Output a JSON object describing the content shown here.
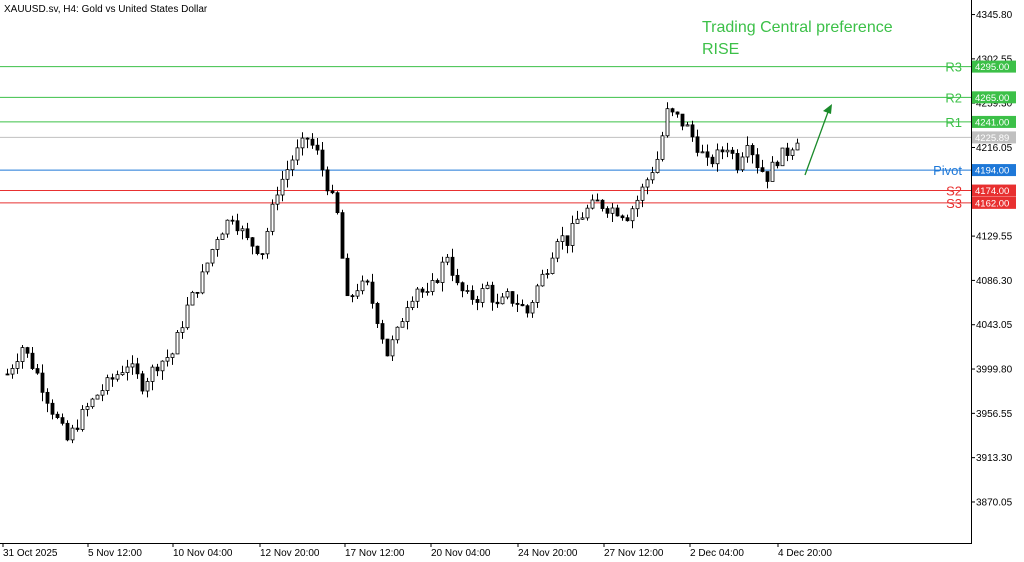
{
  "header": {
    "symbol_label": "XAUUSD.sv, H4:  Gold vs United States Dollar"
  },
  "annotation": {
    "line1": "Trading Central preference",
    "line2": "RISE"
  },
  "colors": {
    "resistance": "#3cc048",
    "support": "#e83030",
    "pivot": "#1e78d8",
    "current": "#c0c0c0",
    "candle_bull": "#ffffff",
    "candle_bear": "#000000",
    "arrow": "#1a8a2a"
  },
  "levels": [
    {
      "name": "R3",
      "price": 4295.0,
      "price_label": "4295.00",
      "kind": "resistance"
    },
    {
      "name": "R2",
      "price": 4265.0,
      "price_label": "4265.00",
      "kind": "resistance"
    },
    {
      "name": "R1",
      "price": 4241.0,
      "price_label": "4241.00",
      "kind": "resistance"
    },
    {
      "name": "Pivot",
      "price": 4194.0,
      "price_label": "4194.00",
      "kind": "pivot"
    },
    {
      "name": "S2",
      "price": 4174.0,
      "price_label": "4174.00",
      "kind": "support"
    },
    {
      "name": "S3",
      "price": 4162.0,
      "price_label": "4162.00",
      "kind": "support"
    }
  ],
  "current_price": {
    "price": 4225.89,
    "label": "4225.89"
  },
  "y_axis": {
    "min": 3830.0,
    "max": 4360.0,
    "ticks": [
      "4345.80",
      "4302.55",
      "4259.30",
      "4216.05",
      "4129.55",
      "4086.30",
      "4043.05",
      "3999.80",
      "3956.55",
      "3913.30",
      "3870.05"
    ]
  },
  "x_axis": {
    "ticks": [
      "31 Oct 2025",
      "5 Nov 12:00",
      "10 Nov 04:00",
      "12 Nov 20:00",
      "17 Nov 12:00",
      "20 Nov 04:00",
      "24 Nov 20:00",
      "27 Nov 12:00",
      "2 Dec 04:00",
      "4 Dec 20:00"
    ]
  },
  "chart_data": {
    "type": "candlestick",
    "timeframe": "H4",
    "price_anchors": [
      [
        0,
        3995
      ],
      [
        3,
        4022
      ],
      [
        6,
        3995
      ],
      [
        9,
        3960
      ],
      [
        12,
        3930
      ],
      [
        15,
        3955
      ],
      [
        18,
        3975
      ],
      [
        21,
        3990
      ],
      [
        24,
        4005
      ],
      [
        27,
        3985
      ],
      [
        30,
        4005
      ],
      [
        33,
        4015
      ],
      [
        36,
        4060
      ],
      [
        39,
        4090
      ],
      [
        42,
        4130
      ],
      [
        45,
        4150
      ],
      [
        48,
        4125
      ],
      [
        51,
        4115
      ],
      [
        54,
        4175
      ],
      [
        57,
        4205
      ],
      [
        60,
        4225
      ],
      [
        62,
        4210
      ],
      [
        64,
        4180
      ],
      [
        66,
        4150
      ],
      [
        68,
        4065
      ],
      [
        70,
        4080
      ],
      [
        72,
        4080
      ],
      [
        74,
        4050
      ],
      [
        76,
        4015
      ],
      [
        78,
        4035
      ],
      [
        80,
        4065
      ],
      [
        82,
        4080
      ],
      [
        84,
        4070
      ],
      [
        86,
        4090
      ],
      [
        88,
        4112
      ],
      [
        90,
        4080
      ],
      [
        92,
        4070
      ],
      [
        94,
        4070
      ],
      [
        96,
        4080
      ],
      [
        98,
        4060
      ],
      [
        100,
        4070
      ],
      [
        102,
        4065
      ],
      [
        104,
        4055
      ],
      [
        106,
        4080
      ],
      [
        108,
        4100
      ],
      [
        110,
        4130
      ],
      [
        112,
        4125
      ],
      [
        114,
        4145
      ],
      [
        116,
        4155
      ],
      [
        118,
        4162
      ],
      [
        120,
        4158
      ],
      [
        122,
        4155
      ],
      [
        124,
        4150
      ],
      [
        126,
        4165
      ],
      [
        128,
        4185
      ],
      [
        130,
        4205
      ],
      [
        132,
        4250
      ],
      [
        134,
        4245
      ],
      [
        136,
        4235
      ],
      [
        138,
        4218
      ],
      [
        140,
        4200
      ],
      [
        142,
        4208
      ],
      [
        144,
        4218
      ],
      [
        146,
        4200
      ],
      [
        148,
        4225
      ],
      [
        150,
        4200
      ],
      [
        152,
        4188
      ],
      [
        154,
        4205
      ],
      [
        156,
        4212
      ],
      [
        158,
        4226
      ]
    ]
  }
}
